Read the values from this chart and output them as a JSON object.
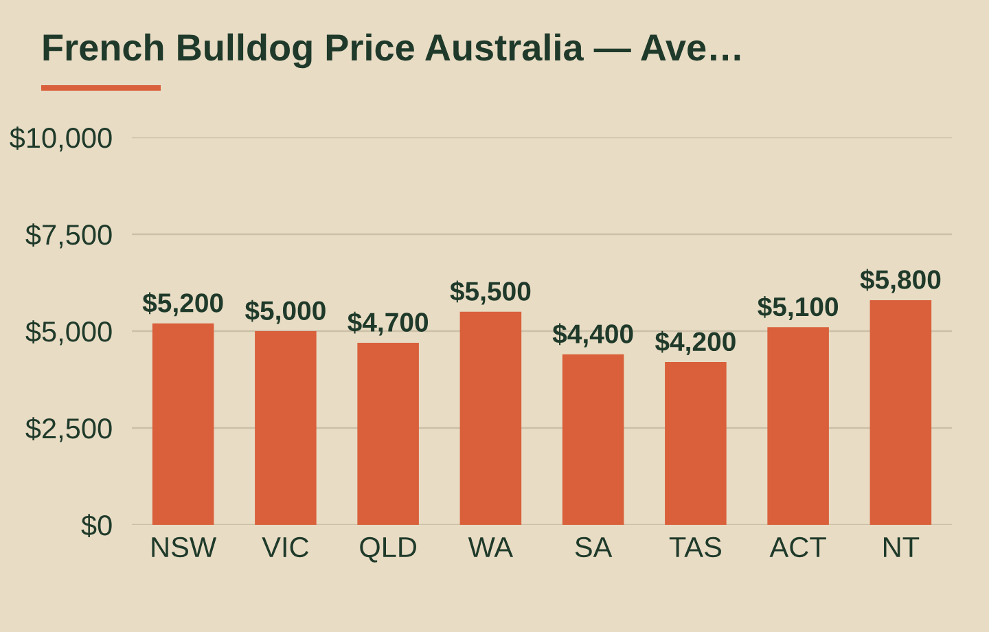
{
  "chart_data": {
    "type": "bar",
    "title": "French Bulldog Price Australia — Ave…",
    "categories": [
      "NSW",
      "VIC",
      "QLD",
      "WA",
      "SA",
      "TAS",
      "ACT",
      "NT"
    ],
    "values": [
      5200,
      5000,
      4700,
      5500,
      4400,
      4200,
      5100,
      5800
    ],
    "value_labels": [
      "$5,200",
      "$5,000",
      "$4,700",
      "$5,500",
      "$4,400",
      "$4,200",
      "$5,100",
      "$5,800"
    ],
    "color": "#d9603b",
    "ylim": [
      0,
      10000
    ],
    "yticks": [
      {
        "value": 0,
        "label": "$0"
      },
      {
        "value": 2500,
        "label": "$2,500"
      },
      {
        "value": 5000,
        "label": "$5,000"
      },
      {
        "value": 7500,
        "label": "$7,500"
      },
      {
        "value": 10000,
        "label": "$10,000"
      }
    ],
    "grid": "y",
    "legend": false
  }
}
